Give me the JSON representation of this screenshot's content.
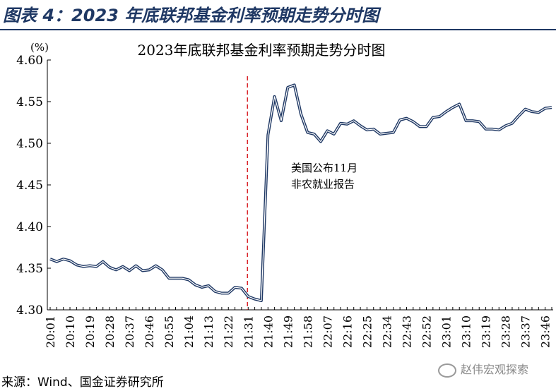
{
  "figure_title": "图表 4：2023 年底联邦基金利率预期走势分时图",
  "source_note": "来源：Wind、国金证券研究所",
  "watermark": "赵伟宏观探索",
  "colors": {
    "line": "#1f3864",
    "marker": "#d9262c",
    "title": "#1f3864"
  },
  "chart_data": {
    "type": "line",
    "title": "2023年底联邦基金利率预期走势分时图",
    "ylabel": "(%)",
    "xlabel": "",
    "ylim": [
      4.3,
      4.6
    ],
    "yticks": [
      "4.30",
      "4.35",
      "4.40",
      "4.45",
      "4.50",
      "4.55",
      "4.60"
    ],
    "yticks_values": [
      4.3,
      4.35,
      4.4,
      4.45,
      4.5,
      4.55,
      4.6
    ],
    "grid": false,
    "x": [
      "20:01",
      "20:04",
      "20:07",
      "20:10",
      "20:13",
      "20:16",
      "20:19",
      "20:22",
      "20:25",
      "20:28",
      "20:31",
      "20:34",
      "20:37",
      "20:40",
      "20:43",
      "20:46",
      "20:49",
      "20:52",
      "20:55",
      "20:58",
      "21:01",
      "21:04",
      "21:07",
      "21:10",
      "21:13",
      "21:16",
      "21:19",
      "21:22",
      "21:25",
      "21:28",
      "21:31",
      "21:34",
      "21:37",
      "21:40",
      "21:43",
      "21:46",
      "21:49",
      "21:52",
      "21:55",
      "21:58",
      "22:01",
      "22:04",
      "22:07",
      "22:10",
      "22:13",
      "22:16",
      "22:19",
      "22:22",
      "22:25",
      "22:28",
      "22:31",
      "22:34",
      "22:37",
      "22:40",
      "22:43",
      "22:46",
      "22:49",
      "22:52",
      "22:55",
      "22:58",
      "23:01",
      "23:04",
      "23:07",
      "23:10",
      "23:13",
      "23:16",
      "23:19",
      "23:22",
      "23:25",
      "23:28",
      "23:31",
      "23:34",
      "23:37",
      "23:40",
      "23:43",
      "23:46",
      "23:49"
    ],
    "xtick_labels": [
      "20:01",
      "20:10",
      "20:19",
      "20:28",
      "20:37",
      "20:46",
      "20:55",
      "21:04",
      "21:13",
      "21:22",
      "21:31",
      "21:40",
      "21:49",
      "21:58",
      "22:07",
      "22:16",
      "22:25",
      "22:34",
      "22:43",
      "22:52",
      "23:01",
      "23:10",
      "23:19",
      "23:28",
      "23:37",
      "23:46"
    ],
    "series": [
      {
        "values": [
          4.361,
          4.358,
          4.361,
          4.359,
          4.354,
          4.352,
          4.353,
          4.352,
          4.358,
          4.351,
          4.348,
          4.352,
          4.347,
          4.353,
          4.347,
          4.348,
          4.353,
          4.348,
          4.338,
          4.338,
          4.338,
          4.336,
          4.33,
          4.327,
          4.329,
          4.322,
          4.32,
          4.32,
          4.327,
          4.326,
          4.316,
          4.313,
          4.311,
          4.51,
          4.556,
          4.527,
          4.567,
          4.57,
          4.535,
          4.513,
          4.511,
          4.502,
          4.515,
          4.511,
          4.524,
          4.523,
          4.527,
          4.521,
          4.516,
          4.517,
          4.511,
          4.512,
          4.513,
          4.528,
          4.53,
          4.526,
          4.52,
          4.52,
          4.531,
          4.532,
          4.538,
          4.543,
          4.547,
          4.527,
          4.527,
          4.526,
          4.517,
          4.517,
          4.516,
          4.521,
          4.524,
          4.533,
          4.541,
          4.538,
          4.537,
          4.542,
          4.543
        ]
      }
    ],
    "event_line": {
      "x": "21:31",
      "style": "dashed"
    },
    "annotation": {
      "text_line1": "美国公布11月",
      "text_line2": "非农就业报告",
      "x": "22:01",
      "y": 4.475
    }
  }
}
